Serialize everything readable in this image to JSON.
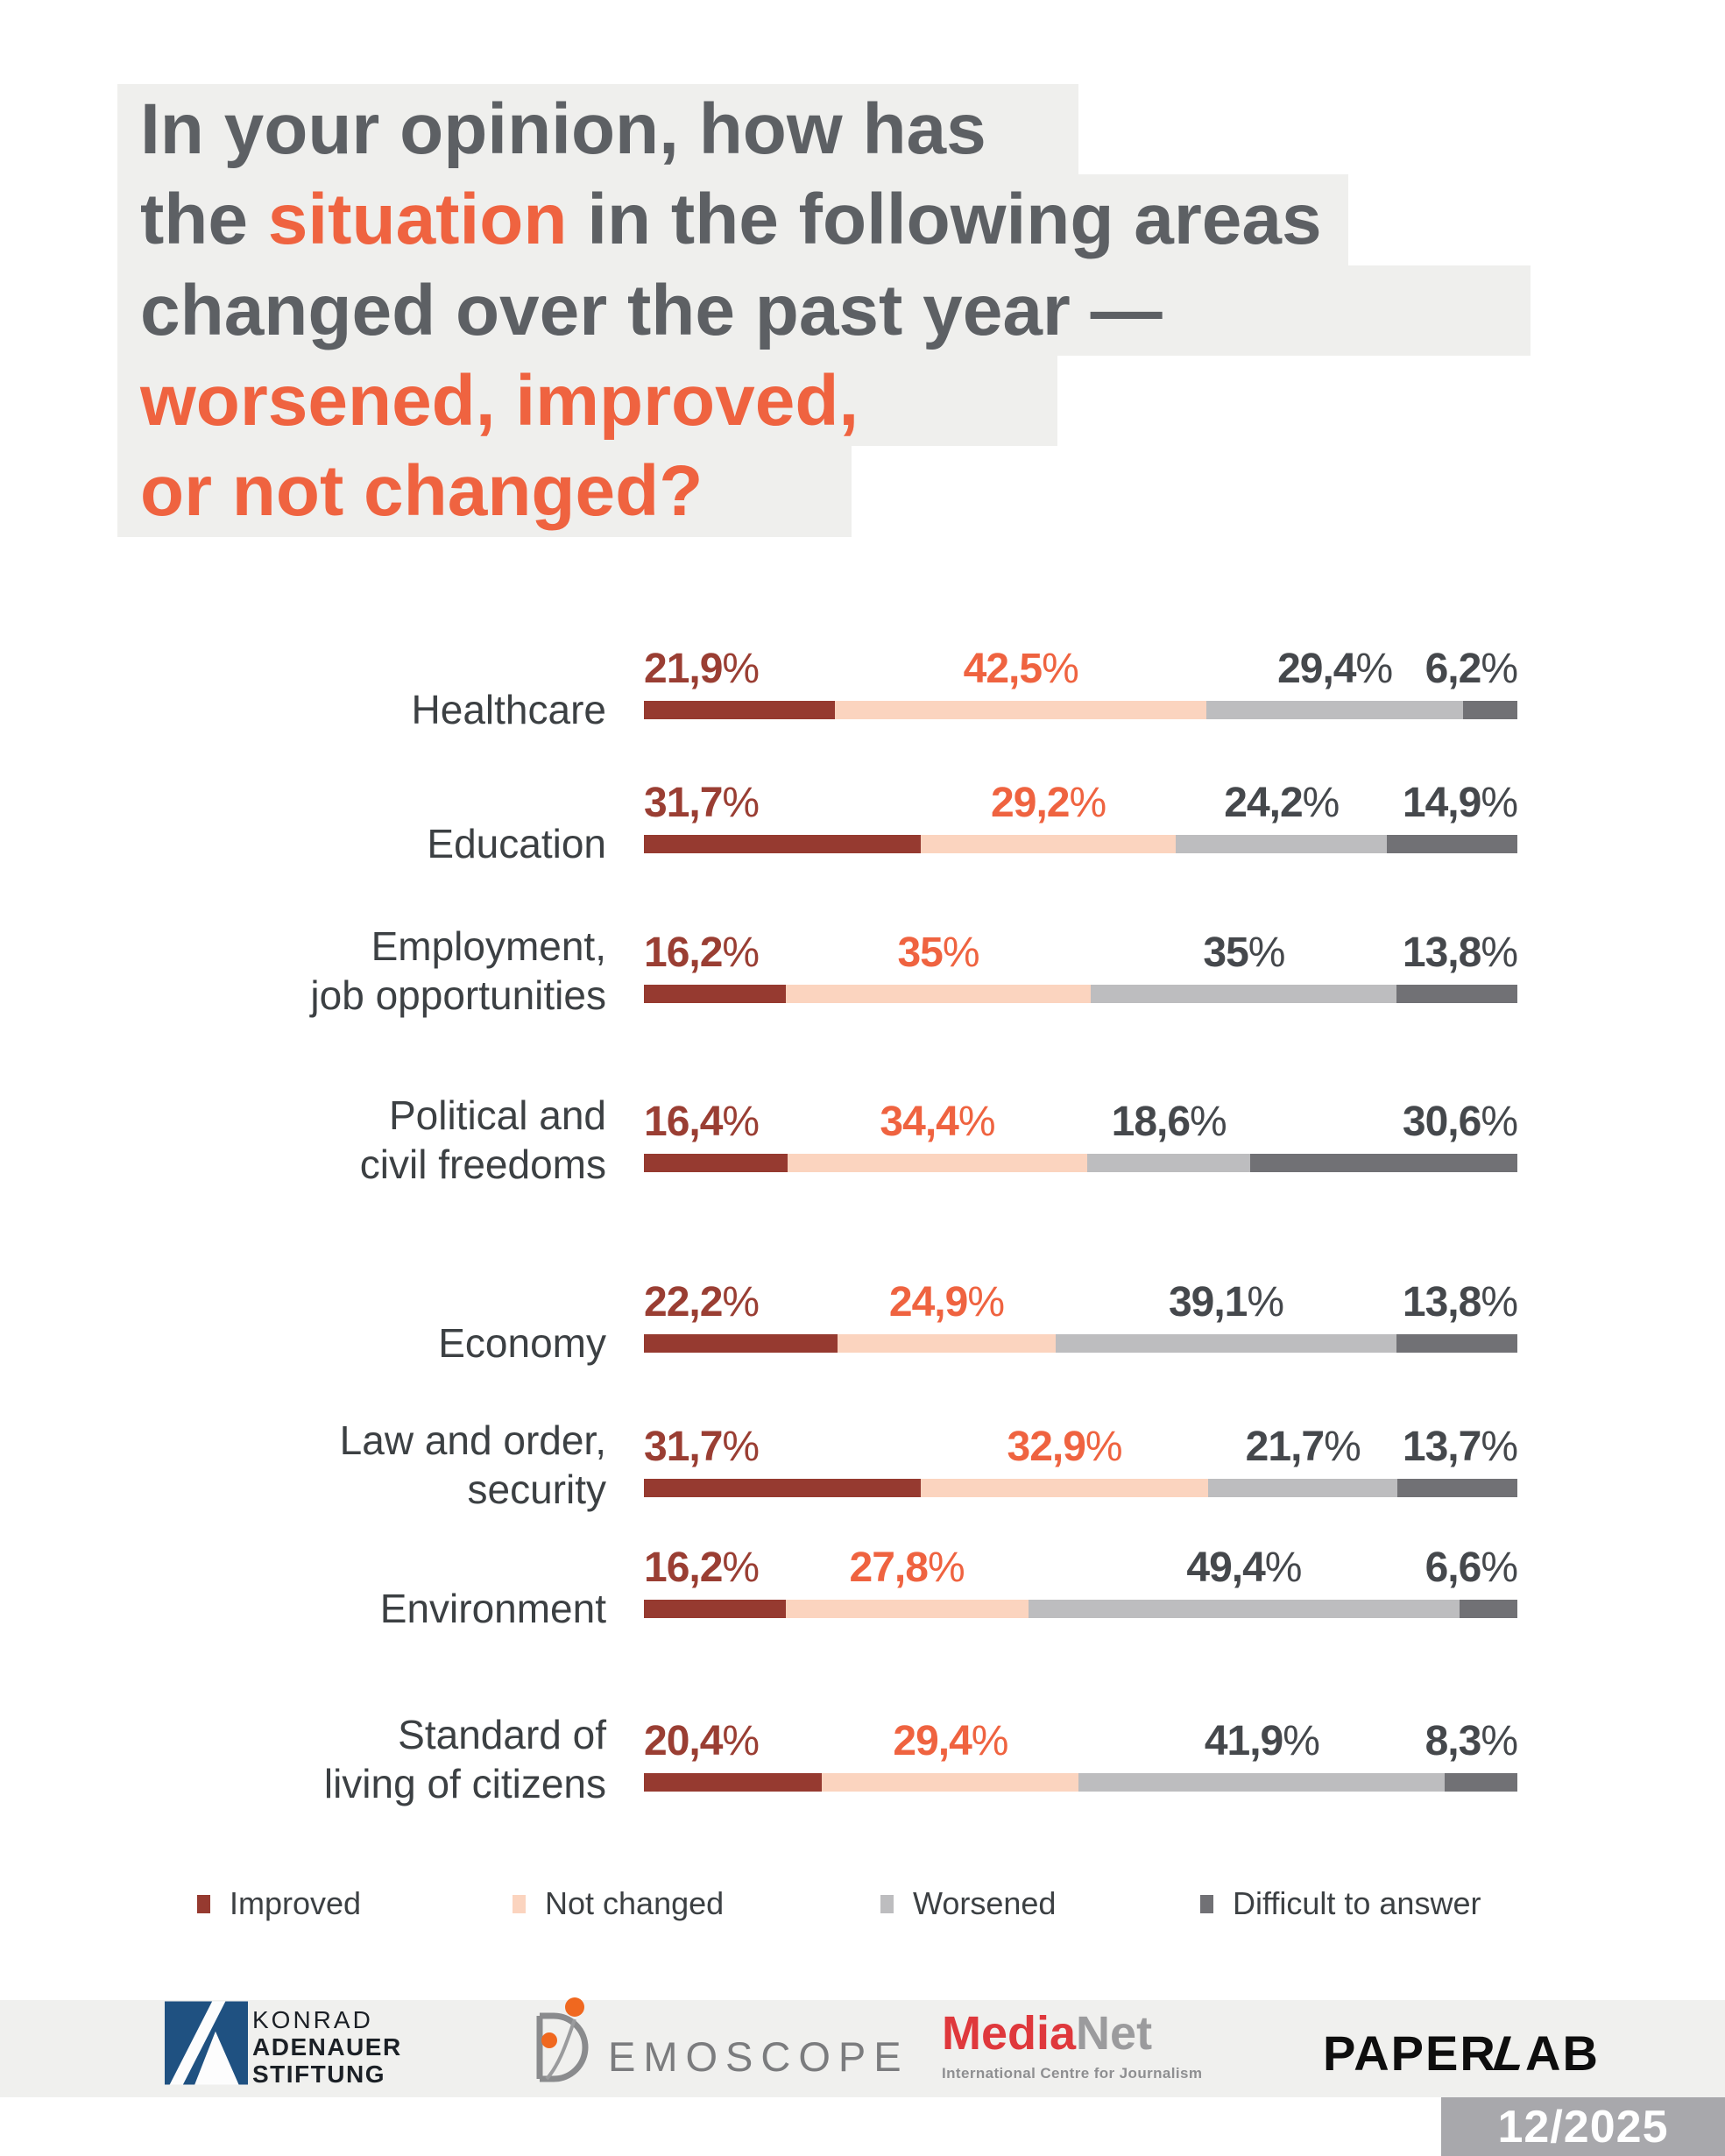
{
  "title": {
    "line1": "In your opinion, how has",
    "line2_prefix": "the ",
    "line2_highlight": "situation",
    "line2_suffix": " in the following areas",
    "line3": "changed over the past year —",
    "line4": "worsened, improved,",
    "line5": "or not changed?"
  },
  "chart_data": {
    "type": "bar",
    "orientation": "horizontal",
    "stacked": true,
    "unit": "%",
    "axis_range": [
      0,
      100
    ],
    "grid": false,
    "legend_position": "bottom",
    "series_names": [
      "Improved",
      "Not changed",
      "Worsened",
      "Difficult to answer"
    ],
    "series_colors": [
      "#963a30",
      "#fbd4bf",
      "#bdbdbf",
      "#717175"
    ],
    "value_label_colors": [
      "#9a3e33",
      "#ef6340",
      "#45484c",
      "#45484c"
    ],
    "rows": [
      {
        "category": [
          "Healthcare"
        ],
        "values": [
          21.9,
          42.5,
          29.4,
          6.2
        ],
        "labels": [
          "21,9%",
          "42,5%",
          "29,4%",
          "6,2%"
        ]
      },
      {
        "category": [
          "Education"
        ],
        "values": [
          31.7,
          29.2,
          24.2,
          14.9
        ],
        "labels": [
          "31,7%",
          "29,2%",
          "24,2%",
          "14,9%"
        ]
      },
      {
        "category": [
          "Employment,",
          "job opportunities"
        ],
        "values": [
          16.2,
          35,
          35,
          13.8
        ],
        "labels": [
          "16,2%",
          "35%",
          "35%",
          "13,8%"
        ]
      },
      {
        "category": [
          "Political and",
          "civil freedoms"
        ],
        "values": [
          16.4,
          34.4,
          18.6,
          30.6
        ],
        "labels": [
          "16,4%",
          "34,4%",
          "18,6%",
          "30,6%"
        ]
      },
      {
        "category": [
          "Economy"
        ],
        "values": [
          22.2,
          24.9,
          39.1,
          13.8
        ],
        "labels": [
          "22,2%",
          "24,9%",
          "39,1%",
          "13,8%"
        ]
      },
      {
        "category": [
          "Law and order,",
          "security"
        ],
        "values": [
          31.7,
          32.9,
          21.7,
          13.7
        ],
        "labels": [
          "31,7%",
          "32,9%",
          "21,7%",
          "13,7%"
        ]
      },
      {
        "category": [
          "Environment"
        ],
        "values": [
          16.2,
          27.8,
          49.4,
          6.6
        ],
        "labels": [
          "16,2%",
          "27,8%",
          "49,4%",
          "6,6%"
        ]
      },
      {
        "category": [
          "Standard of",
          "living of citizens"
        ],
        "values": [
          20.4,
          29.4,
          41.9,
          8.3
        ],
        "labels": [
          "20,4%",
          "29,4%",
          "41,9%",
          "8,3%"
        ]
      }
    ]
  },
  "legend": {
    "items": [
      {
        "label": "Improved",
        "color": "#963a30"
      },
      {
        "label": "Not changed",
        "color": "#fbd4bf"
      },
      {
        "label": "Worsened",
        "color": "#bdbdbf"
      },
      {
        "label": "Difficult to answer",
        "color": "#717175"
      }
    ]
  },
  "footer": {
    "kas": {
      "line1": "KONRAD",
      "line2": "ADENAUER",
      "line3": "STIFTUNG",
      "blue": "#1f5181"
    },
    "demoscope": {
      "d": "D",
      "rest": "EMOSCOPE",
      "orange": "#f0681f",
      "gray": "#8a8b8d"
    },
    "medianet": {
      "part1": "Media",
      "part2": "Net",
      "subtitle": "International Centre for Journalism",
      "red": "#df383c"
    },
    "paperlab": {
      "pre": "PAPER",
      "l": "L",
      "post": "AB"
    },
    "date": "12/2025"
  }
}
